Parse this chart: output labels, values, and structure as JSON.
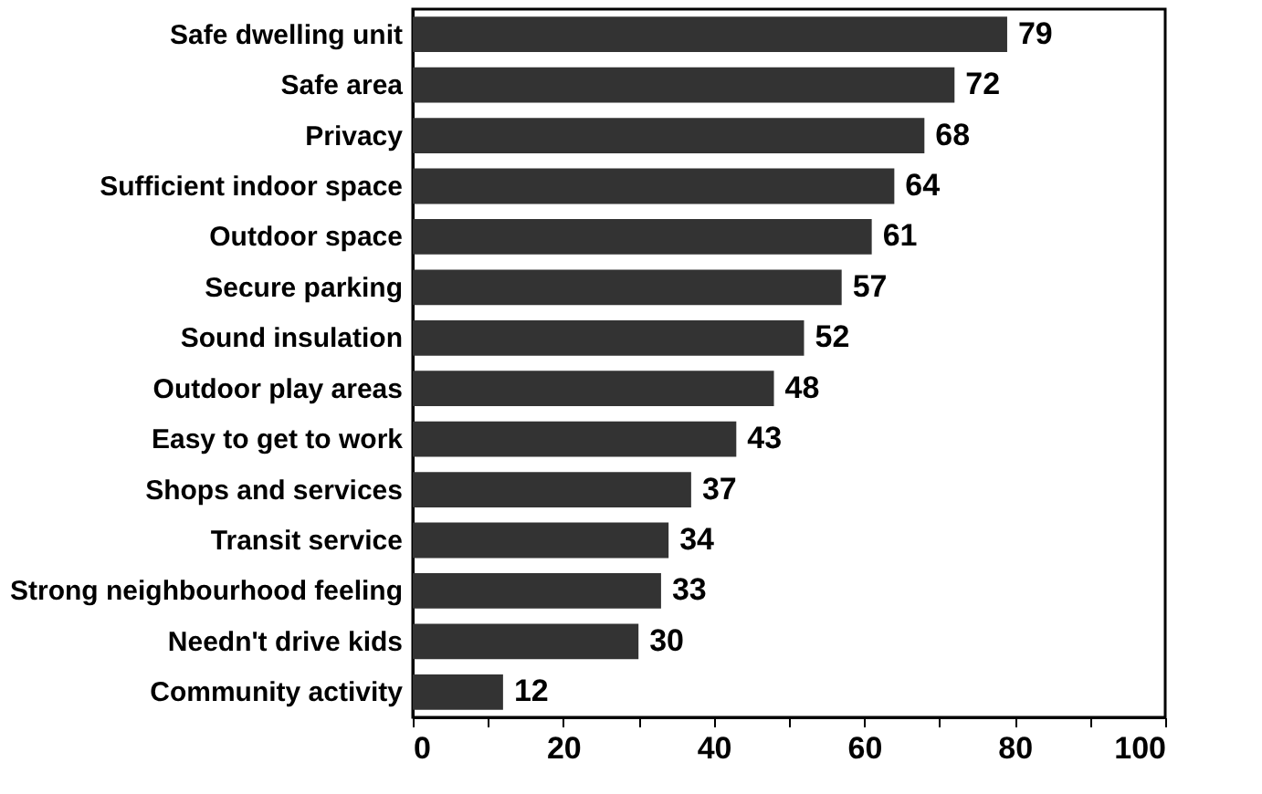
{
  "chart_data": {
    "type": "bar",
    "orientation": "horizontal",
    "categories": [
      "Safe dwelling unit",
      "Safe area",
      "Privacy",
      "Sufficient indoor space",
      "Outdoor space",
      "Secure parking",
      "Sound insulation",
      "Outdoor play areas",
      "Easy to get to work",
      "Shops and services",
      "Transit service",
      "Strong neighbourhood feeling",
      "Needn't drive kids",
      "Community activity"
    ],
    "values": [
      79,
      72,
      68,
      64,
      61,
      57,
      52,
      48,
      43,
      37,
      34,
      33,
      30,
      12
    ],
    "color": "#333333",
    "xlim": [
      0,
      100
    ],
    "xticks": [
      0,
      {
        "value": 10,
        "label": null
      },
      20,
      {
        "value": 30,
        "label": null
      },
      40,
      {
        "value": 50,
        "label": null
      },
      60,
      {
        "value": 70,
        "label": null
      },
      80,
      {
        "value": 90,
        "label": null
      },
      100
    ],
    "data_labels": true
  }
}
